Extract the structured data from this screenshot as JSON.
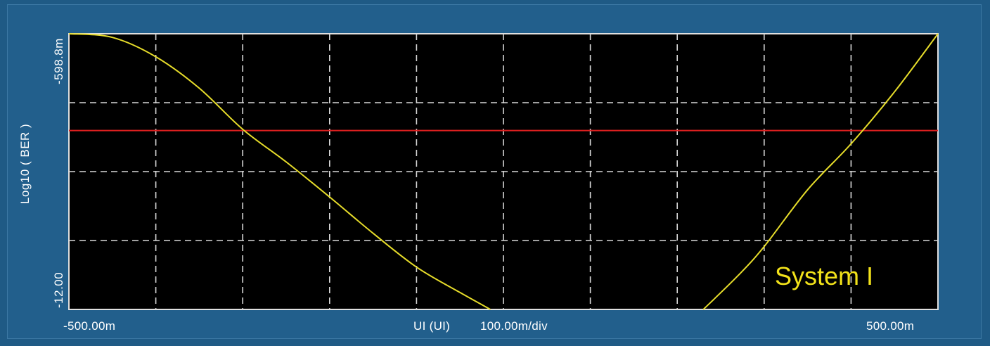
{
  "chart_data": {
    "type": "line",
    "title": "",
    "xlabel": "UI (UI)",
    "x_scale_label": "100.00m/div",
    "ylabel": "Log10 ( BER )",
    "x_tick_labels": {
      "min": "-500.00m",
      "max": "500.00m"
    },
    "y_tick_labels": {
      "top": "-598.8m",
      "bottom": "-12.00"
    },
    "xlim": [
      -0.5,
      0.5
    ],
    "ylim": [
      -12.0,
      -0.5988
    ],
    "grid": true,
    "annotation": "System I",
    "threshold_line": {
      "y": -4.6,
      "color": "#e02020"
    },
    "series": [
      {
        "segments": [
          {
            "x": [
              -0.5,
              -0.45,
              -0.4,
              -0.35,
              -0.3,
              -0.25,
              -0.2,
              -0.15,
              -0.1,
              -0.05,
              -0.015
            ],
            "y": [
              -0.5988,
              -0.75,
              -1.55,
              -2.85,
              -4.55,
              -5.9,
              -7.35,
              -8.85,
              -10.25,
              -11.3,
              -12.0
            ]
          },
          {
            "x": [
              0.23,
              0.27,
              0.3,
              0.35,
              0.4,
              0.45,
              0.5
            ],
            "y": [
              -12.0,
              -10.6,
              -9.4,
              -7.05,
              -5.15,
              -3.0,
              -0.5988
            ]
          }
        ],
        "color": "#e6dc2a"
      }
    ],
    "colors": {
      "background": "#225f8c",
      "plot_area": "#000000",
      "grid": "#d8d8d8",
      "axis_text": "#ffffff",
      "annotation": "#f2e21a"
    }
  }
}
